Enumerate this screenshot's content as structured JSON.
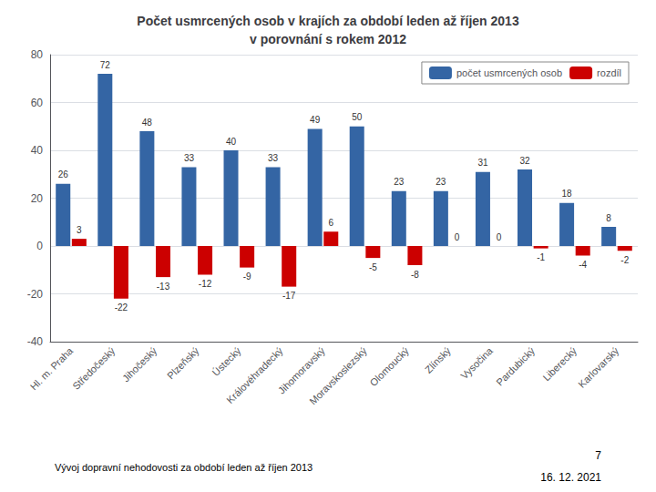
{
  "chart_data": {
    "type": "bar",
    "title": "Počet usmrcených osob v krajích za období leden až říjen 2013\nv porovnání s rokem 2012",
    "categories": [
      "Hl. m. Praha",
      "Středočeský",
      "Jihočeský",
      "Plzeňský",
      "Ústecký",
      "Královéhradecký",
      "Jihomoravský",
      "Moravskoslezský",
      "Olomoucký",
      "Zlínský",
      "Vysočina",
      "Pardubický",
      "Liberecký",
      "Karlovarský"
    ],
    "series": [
      {
        "name": "počet usmrcených osob",
        "color": "#3465A4",
        "values": [
          26,
          72,
          48,
          33,
          40,
          33,
          49,
          50,
          23,
          23,
          31,
          32,
          18,
          8
        ]
      },
      {
        "name": "rozdíl",
        "color": "#CC0000",
        "values": [
          3,
          -22,
          -13,
          -12,
          -9,
          -17,
          6,
          -5,
          -8,
          0,
          0,
          -1,
          -4,
          -2
        ]
      }
    ],
    "ylim": [
      -40,
      80
    ],
    "yticks": [
      -40,
      -20,
      0,
      20,
      40,
      60,
      80
    ],
    "grid": true,
    "legend": "upper right",
    "data_labels": true,
    "annotations": [
      "Vývoj dopravní nehodovosti za období leden až říjen 2013",
      "7",
      "16. 12. 2021"
    ]
  }
}
